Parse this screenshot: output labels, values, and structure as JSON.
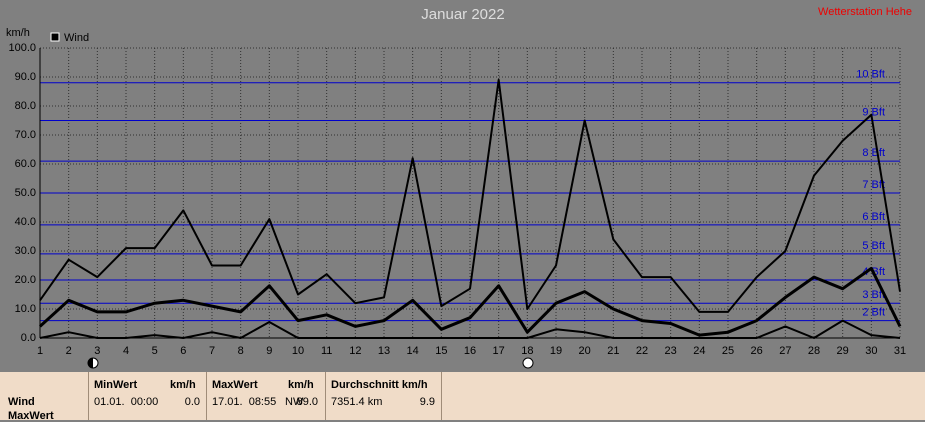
{
  "chart_data": {
    "type": "line",
    "title": "Januar 2022",
    "station": "Wetterstation Hehe",
    "y_label": "km/h",
    "legend": "Wind",
    "categories": [
      "1",
      "2",
      "3",
      "4",
      "5",
      "6",
      "7",
      "8",
      "9",
      "10",
      "11",
      "12",
      "13",
      "14",
      "15",
      "16",
      "17",
      "18",
      "19",
      "20",
      "21",
      "22",
      "23",
      "24",
      "25",
      "26",
      "27",
      "28",
      "29",
      "30",
      "31"
    ],
    "series": [
      {
        "color": "#000000",
        "values": [
          13,
          27,
          21,
          31,
          31,
          44,
          25,
          25,
          41,
          15,
          22,
          12,
          14,
          62,
          11,
          17,
          89,
          10,
          25,
          75,
          34,
          21,
          21,
          9,
          9,
          21,
          30,
          56,
          68,
          77,
          16
        ]
      },
      {
        "color": "#000000",
        "values": [
          4,
          13,
          9,
          9,
          12,
          13,
          11,
          9,
          18,
          6,
          8,
          4,
          6,
          13,
          3,
          7,
          18,
          2,
          12,
          16,
          10,
          6,
          5,
          1,
          2,
          6,
          14,
          21,
          17,
          24,
          4
        ]
      },
      {
        "color": "#000000",
        "values": [
          0,
          2,
          0,
          0,
          1,
          0,
          2,
          0,
          5.5,
          0,
          0,
          0,
          0,
          0,
          0,
          0,
          0,
          0,
          3,
          2,
          0,
          0,
          0,
          0,
          0,
          0,
          4,
          0,
          6,
          1,
          0
        ]
      }
    ],
    "ylim": [
      0,
      100
    ],
    "yticks": [
      {
        "value": 0,
        "label": "0.0"
      },
      {
        "value": 10,
        "label": "10.0"
      },
      {
        "value": 20,
        "label": "20.0"
      },
      {
        "value": 30,
        "label": "30.0"
      },
      {
        "value": 40,
        "label": "40.0"
      },
      {
        "value": 50,
        "label": "50.0"
      },
      {
        "value": 60,
        "label": "60.0"
      },
      {
        "value": 70,
        "label": "70.0"
      },
      {
        "value": 80,
        "label": "80.0"
      },
      {
        "value": 90,
        "label": "90.0"
      },
      {
        "value": 100,
        "label": "100.0"
      }
    ],
    "grid": true,
    "reference_lines": {
      "color": "#0000cc",
      "lines": [
        {
          "value": 6,
          "label": "2 Bft"
        },
        {
          "value": 12,
          "label": "3 Bft"
        },
        {
          "value": 20,
          "label": "4 Bft"
        },
        {
          "value": 29,
          "label": "5 Bft"
        },
        {
          "value": 39,
          "label": "6 Bft"
        },
        {
          "value": 50,
          "label": "7 Bft"
        },
        {
          "value": 61,
          "label": "8 Bft"
        },
        {
          "value": 75,
          "label": "9 Bft"
        },
        {
          "value": 88,
          "label": "10 Bft"
        }
      ]
    }
  },
  "table": {
    "row_labels": [
      "Wind",
      "MaxWert"
    ],
    "columns": [
      {
        "header": "MinWert",
        "unit": "km/h",
        "date": "01.01.  00:00",
        "value": "0.0"
      },
      {
        "header": "MaxWert",
        "unit": "km/h",
        "date": "17.01.  08:55",
        "direction": "NW",
        "value": "89.0"
      },
      {
        "header": "Durchschnitt km/h",
        "distance": "7351.4 km",
        "value": "9.9"
      }
    ]
  }
}
